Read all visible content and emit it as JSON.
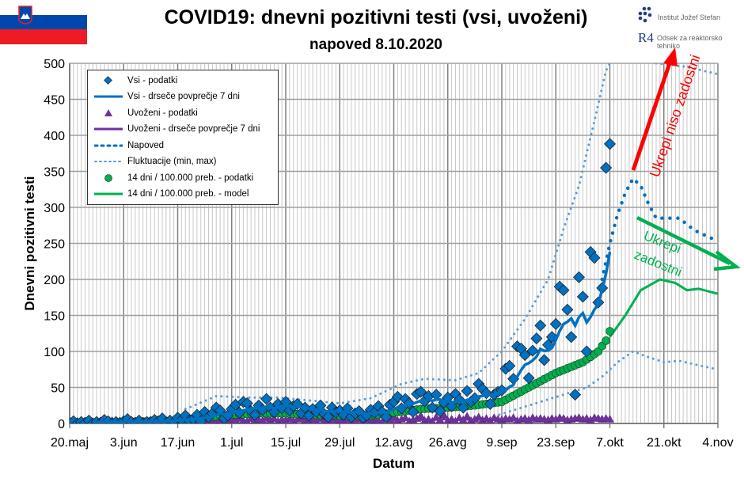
{
  "header": {
    "title": "COVID19: dnevni pozitivni testi (vsi, uvoženi)",
    "subtitle": "napoved 8.10.2020"
  },
  "logos": {
    "ijs": "Institut Jožef Stefan",
    "r4": "Odsek za reaktorsko tehniko",
    "r4_mark": "R4"
  },
  "flag": {
    "colors": [
      "#ffffff",
      "#0047ab",
      "#ed1c24"
    ]
  },
  "annotations": {
    "bad": "Ukrepi niso zadostni",
    "good_line1": "Ukrepi",
    "good_line2": "zadostni",
    "bad_color": "#ff0000",
    "good_color": "#00b050"
  },
  "chart_data": {
    "type": "line",
    "xlabel": "Datum",
    "ylabel": "Dnevni pozitivni testi",
    "x_start": "2020-05-20",
    "x_end": "2020-11-04",
    "xticks": [
      "20.maj",
      "3.jun",
      "17.jun",
      "1.jul",
      "15.jul",
      "29.jul",
      "12.avg",
      "26.avg",
      "9.sep",
      "23.sep",
      "7.okt",
      "21.okt",
      "4.nov"
    ],
    "ylim": [
      0,
      500
    ],
    "yticks": [
      "0",
      "50",
      "100",
      "150",
      "200",
      "250",
      "300",
      "350",
      "400",
      "450",
      "500"
    ],
    "grid": true,
    "legend_position": "top-left",
    "legend": [
      "Vsi - podatki",
      "Vsi - drseče povprečje 7 dni",
      "Uvoženi - podatki",
      "Uvoženi - drseče povprečje 7 dni",
      "Napoved",
      "Fluktuacije (min, max)",
      "14 dni / 100.000 preb. - podatki",
      "14 dni / 100.000 preb. - model"
    ],
    "colors": {
      "vsi": "#0070c0",
      "avg": "#0070c0",
      "uvozeni": "#7030a0",
      "napoved": "#0070c0",
      "fluct": "#5b9bd5",
      "p14": "#00b050"
    },
    "vsi_daily": [
      1,
      3,
      0,
      2,
      1,
      4,
      0,
      2,
      1,
      5,
      3,
      0,
      2,
      1,
      3,
      6,
      2,
      1,
      4,
      0,
      2,
      2,
      5,
      3,
      7,
      1,
      4,
      2,
      8,
      5,
      11,
      4,
      6,
      12,
      3,
      16,
      9,
      14,
      22,
      18,
      7,
      11,
      20,
      26,
      15,
      30,
      28,
      17,
      12,
      25,
      19,
      34,
      22,
      16,
      27,
      21,
      30,
      18,
      24,
      27,
      14,
      22,
      11,
      20,
      16,
      25,
      13,
      9,
      22,
      15,
      18,
      12,
      21,
      9,
      14,
      17,
      8,
      11,
      19,
      15,
      24,
      16,
      9,
      26,
      30,
      37,
      21,
      34,
      28,
      16,
      41,
      44,
      31,
      38,
      22,
      40,
      17,
      29,
      36,
      24,
      41,
      33,
      22,
      45,
      30,
      35,
      55,
      48,
      42,
      27,
      40,
      44,
      46,
      76,
      80,
      62,
      107,
      104,
      95,
      63,
      101,
      118,
      136,
      88,
      109,
      120,
      138,
      190,
      185,
      158,
      120,
      40,
      203,
      176,
      100,
      238,
      230,
      168,
      188,
      355,
      388
    ],
    "uvozeni_daily": [
      1,
      0,
      2,
      1,
      0,
      1,
      0,
      2,
      1,
      0,
      1,
      3,
      0,
      1,
      0,
      2,
      1,
      0,
      1,
      2,
      0,
      1,
      0,
      3,
      1,
      0,
      2,
      1,
      4,
      2,
      1,
      3,
      0,
      6,
      2,
      3,
      5,
      2,
      1,
      4,
      6,
      3,
      5,
      4,
      7,
      3,
      2,
      6,
      4,
      5,
      3,
      7,
      4,
      6,
      2,
      5,
      4,
      6,
      3,
      5,
      7,
      4,
      3,
      5,
      2,
      6,
      4,
      3,
      5,
      2,
      4,
      3,
      5,
      2,
      4,
      6,
      3,
      5,
      2,
      4,
      3,
      1,
      8,
      4,
      9,
      3,
      5,
      7,
      2,
      4,
      6,
      10,
      3,
      5,
      2,
      8,
      4,
      11,
      3,
      5,
      2,
      7,
      4,
      9,
      3,
      5,
      8,
      4,
      6,
      3,
      7,
      5,
      4,
      6,
      5,
      7,
      3,
      5,
      6,
      4,
      7,
      5,
      6,
      5,
      4,
      6,
      5,
      7,
      6,
      4,
      5,
      6,
      7,
      5,
      6,
      4,
      7,
      6,
      5,
      6,
      5
    ],
    "p14_points": [
      [
        0,
        1
      ],
      [
        14,
        2
      ],
      [
        28,
        4
      ],
      [
        35,
        8
      ],
      [
        42,
        12
      ],
      [
        49,
        14
      ],
      [
        56,
        14
      ],
      [
        63,
        12
      ],
      [
        70,
        11
      ],
      [
        77,
        10
      ],
      [
        84,
        15
      ],
      [
        91,
        20
      ],
      [
        98,
        22
      ],
      [
        105,
        25
      ],
      [
        112,
        30
      ],
      [
        119,
        50
      ],
      [
        126,
        70
      ],
      [
        133,
        85
      ],
      [
        137,
        100
      ],
      [
        139,
        115
      ],
      [
        140,
        128
      ]
    ],
    "p14_model": [
      [
        140,
        120
      ],
      [
        144,
        150
      ],
      [
        148,
        185
      ],
      [
        153,
        200
      ],
      [
        157,
        195
      ],
      [
        160,
        185
      ],
      [
        163,
        187
      ],
      [
        168,
        180
      ]
    ],
    "napoved": [
      [
        138,
        200
      ],
      [
        140,
        250
      ],
      [
        142,
        290
      ],
      [
        144,
        320
      ],
      [
        146,
        340
      ],
      [
        148,
        330
      ],
      [
        150,
        305
      ],
      [
        152,
        285
      ],
      [
        155,
        285
      ],
      [
        158,
        285
      ],
      [
        162,
        268
      ],
      [
        168,
        253
      ]
    ],
    "fluct_max": [
      [
        30,
        20
      ],
      [
        38,
        38
      ],
      [
        46,
        36
      ],
      [
        54,
        36
      ],
      [
        62,
        32
      ],
      [
        70,
        28
      ],
      [
        78,
        35
      ],
      [
        86,
        55
      ],
      [
        92,
        62
      ],
      [
        100,
        60
      ],
      [
        106,
        70
      ],
      [
        112,
        100
      ],
      [
        118,
        145
      ],
      [
        124,
        200
      ],
      [
        128,
        270
      ],
      [
        132,
        330
      ],
      [
        136,
        420
      ],
      [
        139,
        490
      ],
      [
        140,
        500
      ]
    ],
    "fluct_max_after": [
      [
        152,
        500
      ],
      [
        160,
        495
      ],
      [
        168,
        485
      ]
    ],
    "fluct_min": [
      [
        110,
        10
      ],
      [
        116,
        20
      ],
      [
        122,
        30
      ],
      [
        128,
        40
      ],
      [
        134,
        50
      ],
      [
        138,
        65
      ],
      [
        142,
        85
      ],
      [
        146,
        100
      ],
      [
        150,
        92
      ],
      [
        154,
        85
      ],
      [
        158,
        87
      ],
      [
        162,
        82
      ],
      [
        168,
        75
      ]
    ]
  }
}
